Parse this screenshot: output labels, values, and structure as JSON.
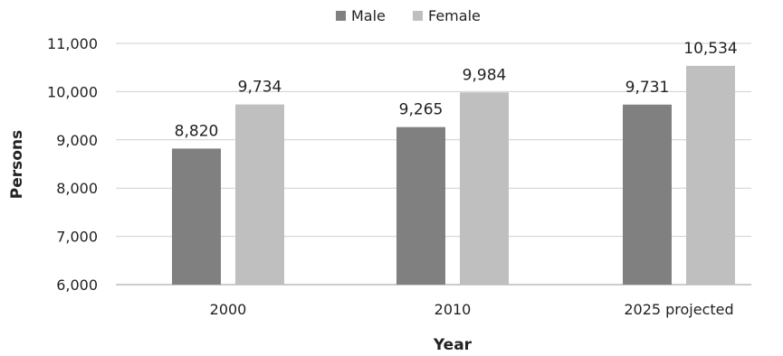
{
  "chart_data": {
    "type": "bar",
    "categories": [
      "2000",
      "2010",
      "2025 projected"
    ],
    "series": [
      {
        "name": "Male",
        "values": [
          8820,
          9265,
          9731
        ],
        "color": "#808080"
      },
      {
        "name": "Female",
        "values": [
          9734,
          9984,
          10534
        ],
        "color": "#bfbfbf"
      }
    ],
    "data_labels": [
      [
        "8,820",
        "9,265",
        "9,731"
      ],
      [
        "9,734",
        "9,984",
        "10,534"
      ]
    ],
    "xlabel": "Year",
    "ylabel": "Persons",
    "ylim": [
      6000,
      11000
    ],
    "yticks": [
      6000,
      7000,
      8000,
      9000,
      10000,
      11000
    ],
    "ytick_labels": [
      "6,000",
      "7,000",
      "8,000",
      "9,000",
      "10,000",
      "11,000"
    ],
    "grid": true,
    "legend_position": "top-center"
  }
}
